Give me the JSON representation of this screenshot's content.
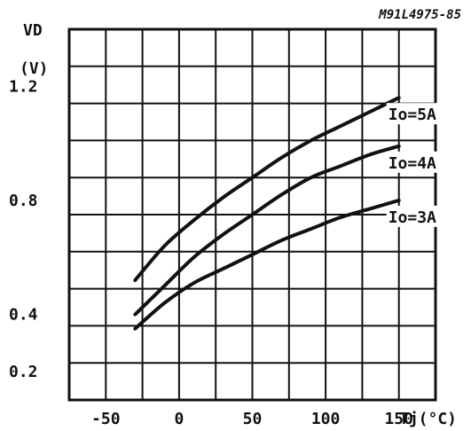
{
  "chart_data": {
    "type": "line",
    "code": "M91L4975-85",
    "ylabel": "VD",
    "yunit": "(V)",
    "xlabel": "Tj(°C)",
    "xlim": [
      -75,
      175
    ],
    "ylim": [
      0.1,
      1.4
    ],
    "x_ticks": [
      -50,
      0,
      50,
      100,
      150
    ],
    "x_tick_labels": [
      "-50",
      "0",
      "50",
      "100",
      "150"
    ],
    "y_ticks": [
      0.2,
      0.4,
      0.8,
      1.2
    ],
    "y_tick_labels": [
      "0.2",
      "0.4",
      "0.8",
      "1.2"
    ],
    "grid": true,
    "series": [
      {
        "name": "Io=5A",
        "x": [
          -30,
          -10,
          10,
          30,
          50,
          70,
          90,
          110,
          130,
          150
        ],
        "y": [
          0.52,
          0.64,
          0.73,
          0.81,
          0.88,
          0.95,
          1.01,
          1.06,
          1.11,
          1.16
        ]
      },
      {
        "name": "Io=4A",
        "x": [
          -30,
          -10,
          10,
          30,
          50,
          70,
          90,
          110,
          130,
          150
        ],
        "y": [
          0.4,
          0.5,
          0.6,
          0.68,
          0.75,
          0.82,
          0.88,
          0.92,
          0.96,
          0.99
        ]
      },
      {
        "name": "Io=3A",
        "x": [
          -30,
          -10,
          10,
          30,
          50,
          70,
          90,
          110,
          130,
          150
        ],
        "y": [
          0.35,
          0.44,
          0.51,
          0.56,
          0.61,
          0.66,
          0.7,
          0.74,
          0.77,
          0.8
        ]
      }
    ]
  }
}
